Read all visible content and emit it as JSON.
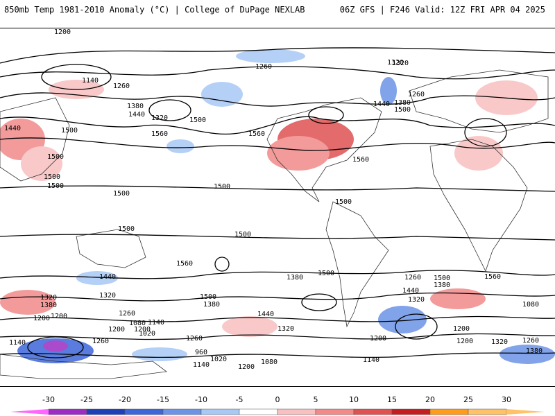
{
  "header": {
    "left_title": "850mb Temp 1981-2010 Anomaly (°C) | College of DuPage NEXLAB",
    "right_title": "06Z GFS | F246 Valid: 12Z FRI APR 04 2025"
  },
  "colorbar": {
    "ticks": [
      "-30",
      "-25",
      "-20",
      "-15",
      "-10",
      "-5",
      "0",
      "5",
      "10",
      "15",
      "20",
      "25",
      "30"
    ],
    "colors": [
      "#ff66ff",
      "#9c2cc4",
      "#1d3fb8",
      "#3d66d9",
      "#6c93e6",
      "#a8c8f5",
      "#ffffff",
      "#f8c0c0",
      "#f28a8a",
      "#e05252",
      "#c41e1e",
      "#ff9c1c",
      "#ffc266"
    ]
  },
  "contour_labels": [
    "1200",
    "1260",
    "1320",
    "1140",
    "1260",
    "1380",
    "1440",
    "1320",
    "1500",
    "1560",
    "1440",
    "1500",
    "1500",
    "1500",
    "1500",
    "1260",
    "1320",
    "1440",
    "1380",
    "1500",
    "1560",
    "1560",
    "1500",
    "1500",
    "1500",
    "1560",
    "1500",
    "1500",
    "1380",
    "1500",
    "1560",
    "1440",
    "1320",
    "1500",
    "1380",
    "1200",
    "1260",
    "1320",
    "1440",
    "1380",
    "1320",
    "1200",
    "1080",
    "1140",
    "1020",
    "960",
    "1020",
    "1080",
    "1140",
    "1200",
    "1260",
    "1200",
    "1140",
    "1200",
    "1140",
    "1260",
    "1200",
    "1320",
    "1260",
    "1380",
    "1080",
    "1200",
    "1260",
    "1380",
    "1440",
    "1320",
    "1500",
    "1200"
  ]
}
